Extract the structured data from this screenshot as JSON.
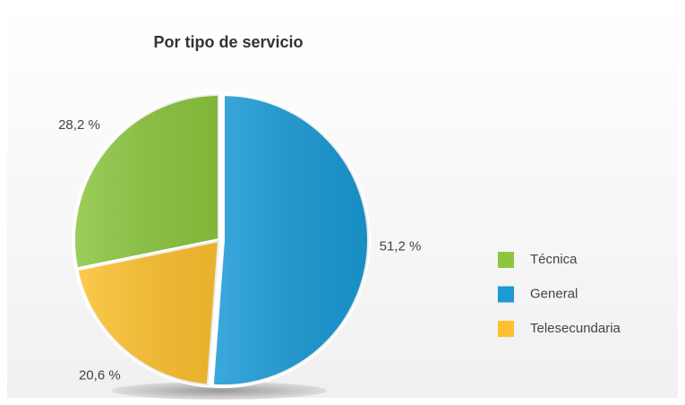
{
  "chart_data": {
    "type": "pie",
    "title": "Por tipo de servicio",
    "categories": [
      "Técnica",
      "General",
      "Telesecundaria"
    ],
    "values": [
      28.2,
      51.2,
      20.6
    ],
    "value_labels": [
      "28,2 %",
      "51,2 %",
      "20,6 %"
    ],
    "colors": [
      "#8cc63f",
      "#1a9ad6",
      "#fdc12f"
    ]
  }
}
